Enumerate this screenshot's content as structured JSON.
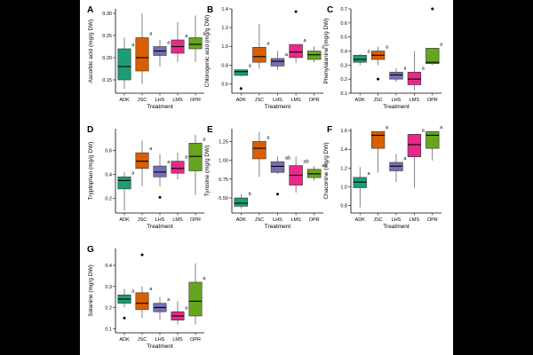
{
  "figure": {
    "x_axis_label": "Treatment"
  },
  "chart_data": [
    {
      "panel": "A",
      "type": "box",
      "ylabel": "Ascorbic acid (mg/g DW)",
      "categories": [
        "ADK",
        "JSC",
        "LHS",
        "LMS",
        "OPR"
      ],
      "colors": [
        "#1b9e77",
        "#d95f02",
        "#7570b3",
        "#e7298a",
        "#66a61e"
      ],
      "ylim": [
        0.12,
        0.31
      ],
      "yticks": [
        0.15,
        0.2,
        0.25,
        0.3
      ],
      "tick_labels": [
        "0.15",
        "0.20",
        "0.25",
        "0.30"
      ],
      "boxes": [
        {
          "min": 0.13,
          "q1": 0.15,
          "median": 0.18,
          "q3": 0.22,
          "max": 0.245,
          "outliers": [],
          "letter": "a"
        },
        {
          "min": 0.14,
          "q1": 0.17,
          "median": 0.2,
          "q3": 0.245,
          "max": 0.3,
          "outliers": [],
          "letter": "a"
        },
        {
          "min": 0.18,
          "q1": 0.205,
          "median": 0.215,
          "q3": 0.225,
          "max": 0.24,
          "outliers": [],
          "letter": "a"
        },
        {
          "min": 0.19,
          "q1": 0.21,
          "median": 0.225,
          "q3": 0.24,
          "max": 0.28,
          "outliers": [],
          "letter": "a"
        },
        {
          "min": 0.19,
          "q1": 0.22,
          "median": 0.23,
          "q3": 0.245,
          "max": 0.295,
          "outliers": [],
          "letter": "a"
        }
      ]
    },
    {
      "panel": "B",
      "type": "box",
      "ylabel": "Chlorogenic acid (mg/g DW)",
      "categories": [
        "ADK",
        "JSC",
        "LHS",
        "LMS",
        "OPR"
      ],
      "colors": [
        "#1b9e77",
        "#d95f02",
        "#7570b3",
        "#e7298a",
        "#66a61e"
      ],
      "ylim": [
        0.5,
        1.4
      ],
      "yticks": [
        0.6,
        0.8,
        1.0,
        1.2,
        1.4
      ],
      "tick_labels": [
        "0.6",
        "0.8",
        "1.0",
        "1.2",
        "1.4"
      ],
      "boxes": [
        {
          "min": 0.68,
          "q1": 0.69,
          "median": 0.73,
          "q3": 0.75,
          "max": 0.75,
          "outliers": [
            0.55
          ],
          "letter": "a"
        },
        {
          "min": 0.76,
          "q1": 0.83,
          "median": 0.89,
          "q3": 0.99,
          "max": 1.24,
          "outliers": [],
          "letter": "a"
        },
        {
          "min": 0.75,
          "q1": 0.79,
          "median": 0.84,
          "q3": 0.87,
          "max": 0.95,
          "outliers": [],
          "letter": "a"
        },
        {
          "min": 0.82,
          "q1": 0.88,
          "median": 0.94,
          "q3": 1.02,
          "max": 1.02,
          "outliers": [
            1.37
          ],
          "letter": "a"
        },
        {
          "min": 0.83,
          "q1": 0.86,
          "median": 0.91,
          "q3": 0.95,
          "max": 1.0,
          "outliers": [],
          "letter": "a"
        }
      ]
    },
    {
      "panel": "C",
      "type": "box",
      "ylabel": "Phenylalanine (mg/g DW)",
      "categories": [
        "ADK",
        "JSC",
        "LHS",
        "LMS",
        "OPR"
      ],
      "colors": [
        "#1b9e77",
        "#d95f02",
        "#7570b3",
        "#e7298a",
        "#66a61e"
      ],
      "ylim": [
        0.1,
        0.7
      ],
      "yticks": [
        0.1,
        0.2,
        0.3,
        0.4,
        0.5,
        0.6,
        0.7
      ],
      "tick_labels": [
        "0.1",
        "0.2",
        "0.3",
        "0.4",
        "0.5",
        "0.6",
        "0.7"
      ],
      "boxes": [
        {
          "min": 0.3,
          "q1": 0.32,
          "median": 0.34,
          "q3": 0.37,
          "max": 0.38,
          "outliers": [],
          "letter": "a"
        },
        {
          "min": 0.3,
          "q1": 0.34,
          "median": 0.37,
          "q3": 0.4,
          "max": 0.43,
          "outliers": [
            0.2
          ],
          "letter": "a"
        },
        {
          "min": 0.18,
          "q1": 0.2,
          "median": 0.23,
          "q3": 0.25,
          "max": 0.28,
          "outliers": [],
          "letter": "a"
        },
        {
          "min": 0.12,
          "q1": 0.16,
          "median": 0.2,
          "q3": 0.25,
          "max": 0.4,
          "outliers": [],
          "letter": "a"
        },
        {
          "min": 0.3,
          "q1": 0.31,
          "median": 0.32,
          "q3": 0.42,
          "max": 0.42,
          "outliers": [
            0.7
          ],
          "letter": "a"
        }
      ]
    },
    {
      "panel": "D",
      "type": "box",
      "ylabel": "Tryptophan (mg/g DW)",
      "categories": [
        "ADK",
        "JSC",
        "LHS",
        "LMS",
        "OPR"
      ],
      "colors": [
        "#1b9e77",
        "#d95f02",
        "#7570b3",
        "#e7298a",
        "#66a61e"
      ],
      "ylim": [
        0.08,
        0.78
      ],
      "yticks": [
        0.2,
        0.4,
        0.6
      ],
      "tick_labels": [
        "0.2",
        "0.4",
        "0.6"
      ],
      "boxes": [
        {
          "min": 0.1,
          "q1": 0.28,
          "median": 0.35,
          "q3": 0.38,
          "max": 0.42,
          "outliers": [],
          "letter": "a"
        },
        {
          "min": 0.3,
          "q1": 0.45,
          "median": 0.51,
          "q3": 0.58,
          "max": 0.68,
          "outliers": [],
          "letter": "a"
        },
        {
          "min": 0.3,
          "q1": 0.38,
          "median": 0.42,
          "q3": 0.47,
          "max": 0.57,
          "outliers": [
            0.21
          ],
          "letter": "a"
        },
        {
          "min": 0.36,
          "q1": 0.41,
          "median": 0.45,
          "q3": 0.51,
          "max": 0.58,
          "outliers": [],
          "letter": "a"
        },
        {
          "min": 0.23,
          "q1": 0.43,
          "median": 0.55,
          "q3": 0.66,
          "max": 0.73,
          "outliers": [],
          "letter": "a"
        }
      ]
    },
    {
      "panel": "E",
      "type": "box",
      "ylabel": "Tyrosine (mg/g DW)",
      "categories": [
        "ADK",
        "JSC",
        "LHS",
        "LMS",
        "OPR"
      ],
      "colors": [
        "#1b9e77",
        "#d95f02",
        "#7570b3",
        "#e7298a",
        "#66a61e"
      ],
      "ylim": [
        0.3,
        1.42
      ],
      "yticks": [
        0.5,
        0.75,
        1.0,
        1.25
      ],
      "tick_labels": [
        "0.50",
        "0.75",
        "1.00",
        "1.25"
      ],
      "boxes": [
        {
          "min": 0.36,
          "q1": 0.39,
          "median": 0.43,
          "q3": 0.5,
          "max": 0.55,
          "outliers": [],
          "letter": "b"
        },
        {
          "min": 0.78,
          "q1": 1.02,
          "median": 1.16,
          "q3": 1.25,
          "max": 1.38,
          "outliers": [],
          "letter": "a"
        },
        {
          "min": 0.82,
          "q1": 0.84,
          "median": 0.92,
          "q3": 0.98,
          "max": 1.05,
          "outliers": [
            0.55
          ],
          "letter": "ab"
        },
        {
          "min": 0.57,
          "q1": 0.67,
          "median": 0.8,
          "q3": 0.93,
          "max": 1.05,
          "outliers": [],
          "letter": "ab"
        },
        {
          "min": 0.73,
          "q1": 0.77,
          "median": 0.82,
          "q3": 0.88,
          "max": 0.92,
          "outliers": [],
          "letter": "ab"
        }
      ]
    },
    {
      "panel": "F",
      "type": "box",
      "ylabel": "Chaconine (mg/g DW)",
      "categories": [
        "ADK",
        "JSC",
        "LHS",
        "LMS",
        "OPR"
      ],
      "colors": [
        "#1b9e77",
        "#d95f02",
        "#7570b3",
        "#e7298a",
        "#66a61e"
      ],
      "ylim": [
        0.72,
        1.62
      ],
      "yticks": [
        0.8,
        1.0,
        1.2,
        1.4,
        1.6
      ],
      "tick_labels": [
        "0.8",
        "1.0",
        "1.2",
        "1.4",
        "1.6"
      ],
      "boxes": [
        {
          "min": 0.78,
          "q1": 0.99,
          "median": 1.05,
          "q3": 1.1,
          "max": 1.21,
          "outliers": [],
          "letter": "a"
        },
        {
          "min": 1.15,
          "q1": 1.41,
          "median": 1.55,
          "q3": 1.59,
          "max": 1.59,
          "outliers": [],
          "letter": "a"
        },
        {
          "min": 1.05,
          "q1": 1.17,
          "median": 1.22,
          "q3": 1.26,
          "max": 1.35,
          "outliers": [],
          "letter": "a"
        },
        {
          "min": 0.99,
          "q1": 1.32,
          "median": 1.45,
          "q3": 1.56,
          "max": 1.56,
          "outliers": [],
          "letter": "a"
        },
        {
          "min": 1.28,
          "q1": 1.41,
          "median": 1.55,
          "q3": 1.59,
          "max": 1.59,
          "outliers": [],
          "letter": "a"
        }
      ]
    },
    {
      "panel": "G",
      "type": "box",
      "ylabel": "Solanine (mg/g DW)",
      "categories": [
        "ADK",
        "JSC",
        "LHS",
        "LMS",
        "OPR"
      ],
      "colors": [
        "#1b9e77",
        "#d95f02",
        "#7570b3",
        "#e7298a",
        "#66a61e"
      ],
      "ylim": [
        0.08,
        0.48
      ],
      "yticks": [
        0.1,
        0.2,
        0.3,
        0.4
      ],
      "tick_labels": [
        "0.1",
        "0.2",
        "0.3",
        "0.4"
      ],
      "boxes": [
        {
          "min": 0.2,
          "q1": 0.22,
          "median": 0.24,
          "q3": 0.26,
          "max": 0.29,
          "outliers": [
            0.15
          ],
          "letter": "a"
        },
        {
          "min": 0.15,
          "q1": 0.19,
          "median": 0.22,
          "q3": 0.27,
          "max": 0.3,
          "outliers": [
            0.45
          ],
          "letter": "a"
        },
        {
          "min": 0.14,
          "q1": 0.18,
          "median": 0.2,
          "q3": 0.22,
          "max": 0.25,
          "outliers": [],
          "letter": "a"
        },
        {
          "min": 0.12,
          "q1": 0.14,
          "median": 0.16,
          "q3": 0.18,
          "max": 0.23,
          "outliers": [],
          "letter": "a"
        },
        {
          "min": 0.12,
          "q1": 0.16,
          "median": 0.23,
          "q3": 0.32,
          "max": 0.41,
          "outliers": [],
          "letter": "a"
        }
      ]
    }
  ]
}
